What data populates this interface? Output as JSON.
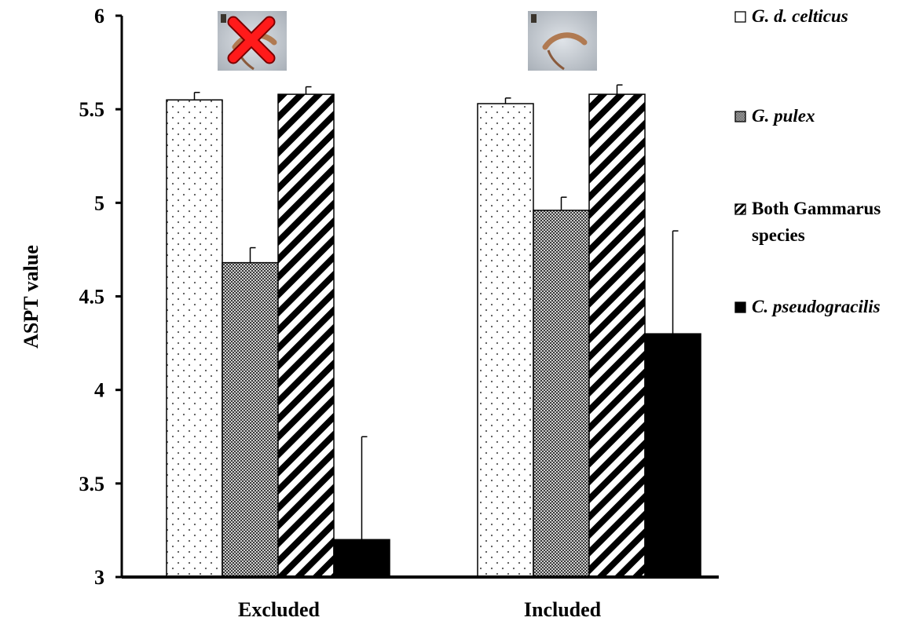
{
  "chart_data": {
    "type": "bar",
    "ylabel": "ASPT value",
    "ylim": [
      3,
      6
    ],
    "yticks": [
      "3",
      "3.5",
      "4",
      "4.5",
      "5",
      "5.5",
      "6"
    ],
    "categories": [
      "Excluded",
      "Included"
    ],
    "grid": false,
    "legend_position": "right",
    "series": [
      {
        "name": "G. d. celticus",
        "italic": true,
        "pattern": "dots",
        "values": [
          5.55,
          5.53
        ],
        "errors": [
          0.04,
          0.03
        ]
      },
      {
        "name": "G. pulex",
        "italic": true,
        "pattern": "checker",
        "values": [
          4.68,
          4.96
        ],
        "errors": [
          0.08,
          0.07
        ]
      },
      {
        "name": "Both Gammarus species",
        "name_lines": [
          "Both Gammarus",
          "species"
        ],
        "italic": false,
        "pattern": "stripes",
        "values": [
          5.58,
          5.58
        ],
        "errors": [
          0.04,
          0.05
        ]
      },
      {
        "name": "C. pseudogracilis",
        "italic": true,
        "pattern": "solid",
        "values": [
          3.2,
          4.3
        ],
        "errors": [
          0.55,
          0.55
        ]
      }
    ],
    "category_images": [
      {
        "icon": "amphipod-photo-icon",
        "crossed_out": true
      },
      {
        "icon": "amphipod-photo-icon",
        "crossed_out": false
      }
    ]
  }
}
